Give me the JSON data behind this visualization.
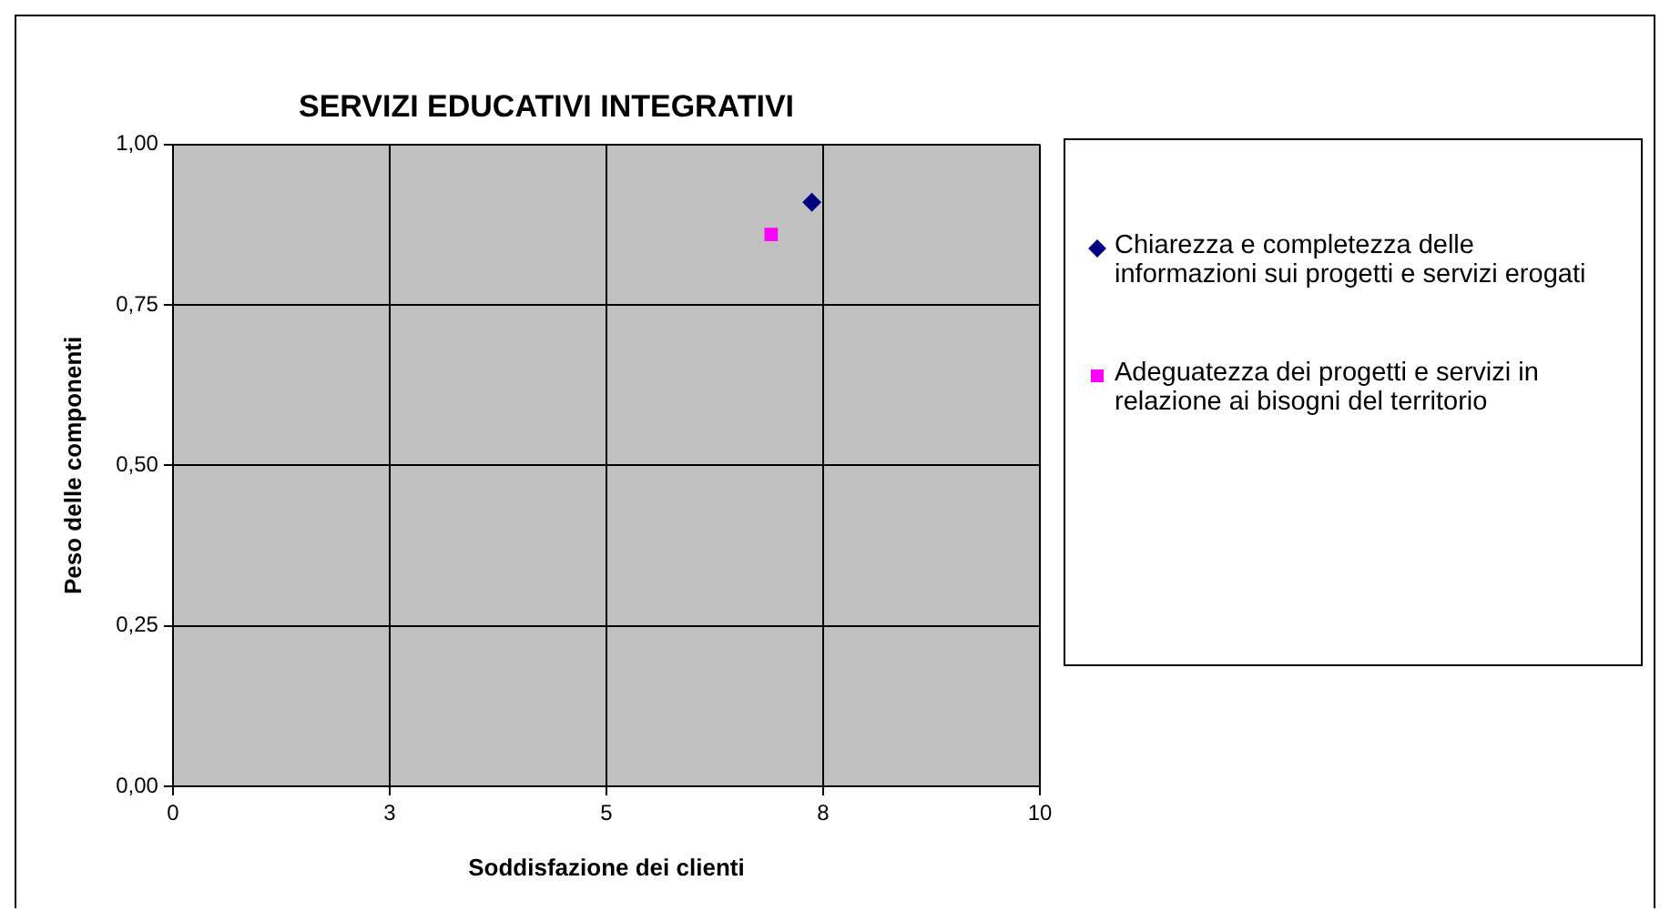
{
  "chart_data": {
    "type": "scatter",
    "title": "SERVIZI EDUCATIVI INTEGRATIVI",
    "xlabel": "Soddisfazione dei clienti",
    "ylabel": "Peso delle componenti",
    "series": [
      {
        "name": "Chiarezza e completezza delle informazioni sui progetti e servizi erogati",
        "color": "#000080",
        "marker": "diamond",
        "x": [
          7.37
        ],
        "values": [
          0.91
        ]
      },
      {
        "name": "Adeguatezza dei progetti e servizi in relazione ai bisogni del territorio",
        "color": "#ff00ff",
        "marker": "square",
        "x": [
          6.9
        ],
        "values": [
          0.86
        ]
      }
    ],
    "xlim": [
      0,
      10
    ],
    "xticks": [
      0,
      {
        "value": 2.5,
        "label": "3"
      },
      5,
      {
        "value": 7.5,
        "label": "8"
      },
      10
    ],
    "ylim": [
      0,
      1
    ],
    "yticks": [
      {
        "value": 0,
        "label": "0,00"
      },
      {
        "value": 0.25,
        "label": "0,25"
      },
      {
        "value": 0.5,
        "label": "0,50"
      },
      {
        "value": 0.75,
        "label": "0,75"
      },
      {
        "value": 1,
        "label": "1,00"
      }
    ],
    "grid": true,
    "legend": "right"
  }
}
